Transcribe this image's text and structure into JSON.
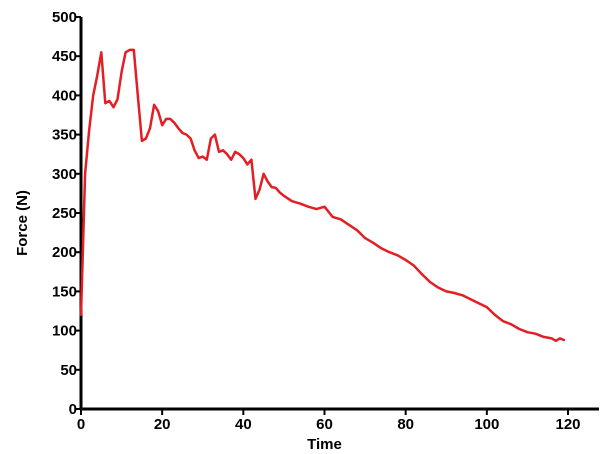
{
  "chart_data": {
    "type": "line",
    "title": "",
    "xlabel": "Time",
    "ylabel": "Force (N)",
    "xlim": [
      0,
      120
    ],
    "ylim": [
      0,
      500
    ],
    "xticks": [
      "0",
      "20",
      "40",
      "60",
      "80",
      "100",
      "120"
    ],
    "yticks": [
      "0",
      "50",
      "100",
      "150",
      "200",
      "250",
      "300",
      "350",
      "400",
      "450",
      "500"
    ],
    "grid": false,
    "legend": "none",
    "line_color": "#e31e24",
    "series": [
      {
        "x": [
          0,
          1,
          2,
          3,
          4,
          5,
          6,
          7,
          8,
          9,
          10,
          11,
          12,
          13,
          14,
          15,
          16,
          17,
          18,
          19,
          20,
          21,
          22,
          23,
          24,
          25,
          26,
          27,
          28,
          29,
          30,
          31,
          32,
          33,
          34,
          35,
          36,
          37,
          38,
          39,
          40,
          41,
          42,
          43,
          44,
          45,
          46,
          47,
          48,
          49,
          50,
          52,
          54,
          56,
          58,
          60,
          62,
          64,
          66,
          68,
          70,
          72,
          74,
          76,
          78,
          80,
          82,
          84,
          86,
          88,
          90,
          92,
          94,
          96,
          98,
          100,
          102,
          104,
          106,
          108,
          110,
          112,
          114,
          116,
          117,
          118,
          119
        ],
        "y": [
          120,
          300,
          355,
          400,
          425,
          455,
          390,
          393,
          385,
          395,
          430,
          455,
          458,
          458,
          400,
          342,
          345,
          358,
          388,
          380,
          362,
          370,
          370,
          365,
          358,
          352,
          350,
          345,
          330,
          320,
          322,
          318,
          345,
          350,
          328,
          330,
          325,
          318,
          328,
          325,
          320,
          312,
          318,
          268,
          280,
          300,
          290,
          283,
          282,
          276,
          272,
          265,
          262,
          258,
          255,
          258,
          245,
          242,
          235,
          228,
          218,
          212,
          205,
          200,
          196,
          190,
          183,
          172,
          162,
          155,
          150,
          148,
          145,
          140,
          135,
          130,
          120,
          112,
          108,
          102,
          98,
          96,
          92,
          90,
          87,
          90,
          88
        ]
      }
    ]
  }
}
